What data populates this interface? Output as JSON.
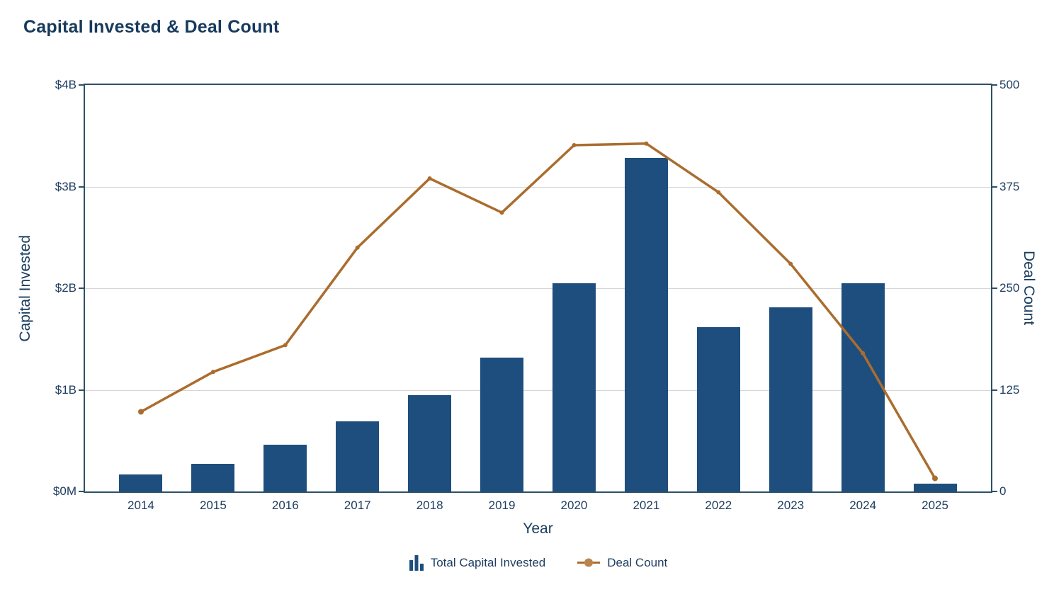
{
  "chart_data": {
    "type": "combo-bar-line",
    "title": "Capital Invested & Deal Count",
    "xlabel": "Year",
    "categories": [
      "2014",
      "2015",
      "2016",
      "2017",
      "2018",
      "2019",
      "2020",
      "2021",
      "2022",
      "2023",
      "2024",
      "2025"
    ],
    "series": [
      {
        "name": "Total Capital Invested",
        "type": "bar",
        "axis": "left",
        "unit": "$M",
        "values": [
          170,
          270,
          460,
          690,
          950,
          1320,
          2050,
          3280,
          1620,
          1810,
          2050,
          80
        ]
      },
      {
        "name": "Deal Count",
        "type": "line",
        "axis": "right",
        "values": [
          98,
          147,
          180,
          300,
          385,
          343,
          426,
          428,
          368,
          280,
          170,
          16
        ]
      }
    ],
    "left_axis": {
      "title": "Capital Invested",
      "range": [
        0,
        4000
      ],
      "ticks": [
        {
          "value": 0,
          "label": "$0M"
        },
        {
          "value": 1000,
          "label": "$1B"
        },
        {
          "value": 2000,
          "label": "$2B"
        },
        {
          "value": 3000,
          "label": "$3B"
        },
        {
          "value": 4000,
          "label": "$4B"
        }
      ]
    },
    "right_axis": {
      "title": "Deal Count",
      "range": [
        0,
        500
      ],
      "ticks": [
        {
          "value": 0,
          "label": "0"
        },
        {
          "value": 125,
          "label": "125"
        },
        {
          "value": 250,
          "label": "250"
        },
        {
          "value": 375,
          "label": "375"
        },
        {
          "value": 500,
          "label": "500"
        }
      ]
    },
    "grid": "horizontal-only",
    "legend_position": "bottom"
  },
  "legend": {
    "items": [
      {
        "icon": "bar-chart-icon",
        "label": "Total Capital Invested"
      },
      {
        "icon": "line-dot-icon",
        "label": "Deal Count"
      }
    ]
  },
  "colors": {
    "bar": "#1e4e7d",
    "line": "#aa6d2e",
    "line_marker": "#b9854d",
    "text": "#1e3c5f",
    "title": "#173a5c",
    "axis_border": "#2d5066",
    "gridline": "#d6d6d6",
    "background": "#ffffff"
  }
}
